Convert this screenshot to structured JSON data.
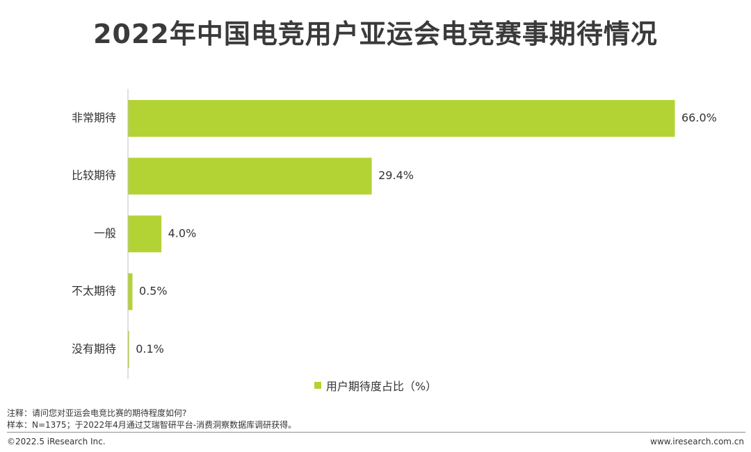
{
  "title": "2022年中国电竞用户亚运会电竞赛事期待情况",
  "chart_data": {
    "type": "bar",
    "orientation": "horizontal",
    "categories": [
      "非常期待",
      "比较期待",
      "一般",
      "不太期待",
      "没有期待"
    ],
    "series": [
      {
        "name": "用户期待度占比（%）",
        "values": [
          66.0,
          29.4,
          4.0,
          0.5,
          0.1
        ],
        "labels": [
          "66.0%",
          "29.4%",
          "4.0%",
          "0.5%",
          "0.1%"
        ]
      }
    ],
    "xlim": [
      0,
      66.0
    ],
    "grid": false,
    "legend_position": "bottom"
  },
  "colors": {
    "bar": "#b3d334",
    "axis": "#bfbfbf"
  },
  "notes": {
    "note": "注释：请问您对亚运会电竞比赛的期待程度如何?",
    "sample": "样本：N=1375；于2022年4月通过艾瑞智研平台-消费洞察数据库调研获得。"
  },
  "footer": {
    "copyright": "©2022.5 iResearch Inc.",
    "website": "www.iresearch.com.cn"
  }
}
